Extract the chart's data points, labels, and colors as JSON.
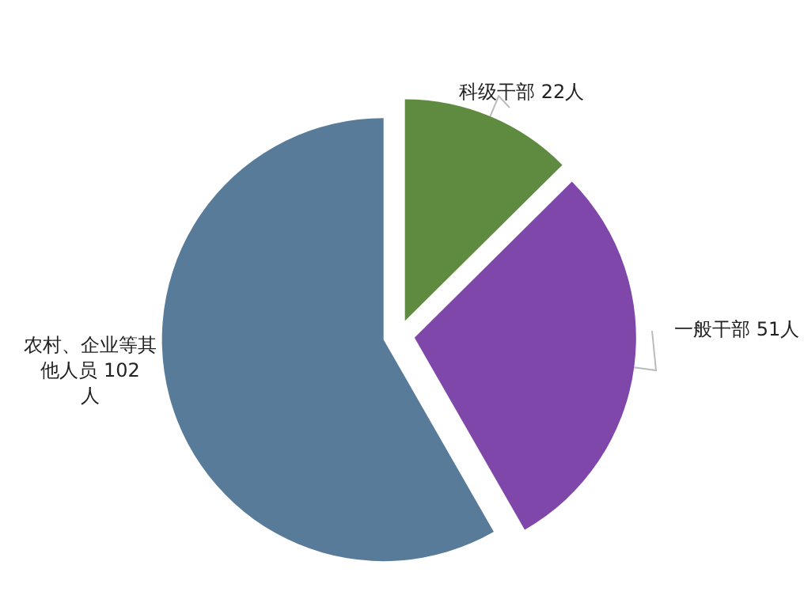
{
  "chart_data": {
    "type": "pie",
    "categories": [
      "科级干部",
      "一般干部",
      "农村、企业等其他人员"
    ],
    "values": [
      22,
      51,
      102
    ],
    "value_labels": [
      "22人",
      "51人",
      "102人"
    ],
    "colors": [
      "#5f8b40",
      "#8047aa",
      "#587b9a"
    ]
  }
}
